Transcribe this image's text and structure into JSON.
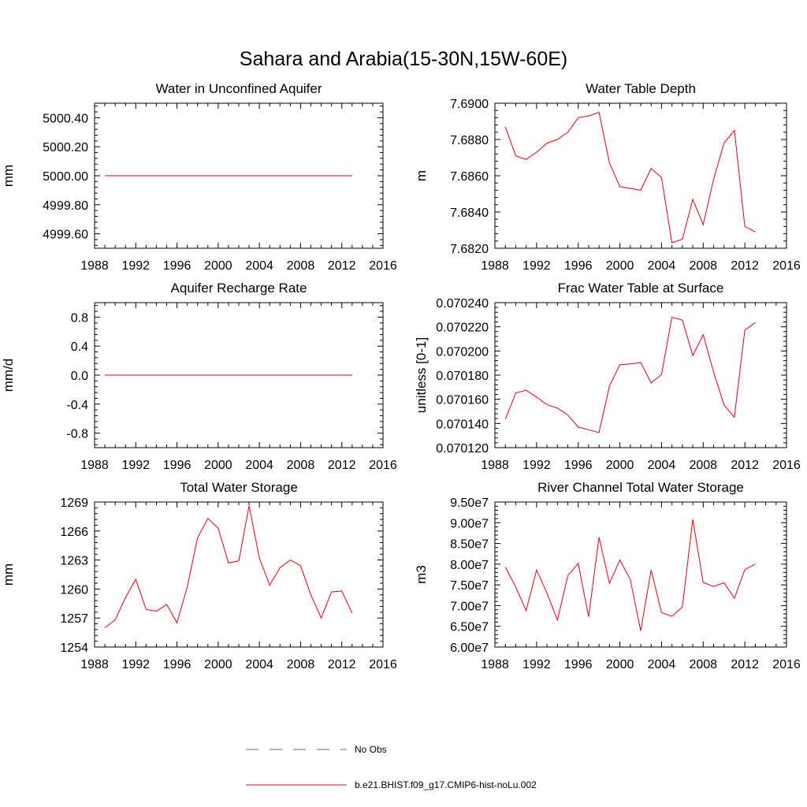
{
  "figure": {
    "title": "Sahara and Arabia(15-30N,15W-60E)"
  },
  "legend": {
    "entries": [
      {
        "label": "No Obs",
        "color": "#5a5aa8",
        "style": "dashed"
      },
      {
        "label": "b.e21.BHIST.f09_g17.CMIP6-hist-noLu.002",
        "color": "#e8000b",
        "style": "solid"
      }
    ]
  },
  "chart_data": [
    {
      "type": "line",
      "title": "Water in Unconfined Aquifer",
      "ylabel": "mm",
      "xlim": [
        1988,
        2016
      ],
      "xticks": [
        1988,
        1992,
        1996,
        2000,
        2004,
        2008,
        2012,
        2016
      ],
      "xtick_labels": [
        "1988",
        "1992",
        "1996",
        "2000",
        "2004",
        "2008",
        "2012",
        "2016"
      ],
      "ylim": [
        4999.5,
        5000.5
      ],
      "yticks": [
        4999.6,
        4999.8,
        5000.0,
        5000.2,
        5000.4
      ],
      "ytick_labels": [
        "4999.60",
        "4999.80",
        "5000.00",
        "5000.20",
        "5000.40"
      ],
      "series": [
        {
          "color": "#e8000b",
          "x": [
            1989,
            1990,
            1991,
            1992,
            1993,
            1994,
            1995,
            1996,
            1997,
            1998,
            1999,
            2000,
            2001,
            2002,
            2003,
            2004,
            2005,
            2006,
            2007,
            2008,
            2009,
            2010,
            2011,
            2012,
            2013
          ],
          "y": [
            5000,
            5000,
            5000,
            5000,
            5000,
            5000,
            5000,
            5000,
            5000,
            5000,
            5000,
            5000,
            5000,
            5000,
            5000,
            5000,
            5000,
            5000,
            5000,
            5000,
            5000,
            5000,
            5000,
            5000,
            5000
          ]
        }
      ]
    },
    {
      "type": "line",
      "title": "Water Table Depth",
      "ylabel": "m",
      "xlim": [
        1988,
        2016
      ],
      "xticks": [
        1988,
        1992,
        1996,
        2000,
        2004,
        2008,
        2012,
        2016
      ],
      "xtick_labels": [
        "1988",
        "1992",
        "1996",
        "2000",
        "2004",
        "2008",
        "2012",
        "2016"
      ],
      "ylim": [
        7.682,
        7.69
      ],
      "yticks": [
        7.682,
        7.684,
        7.686,
        7.688,
        7.69
      ],
      "ytick_labels": [
        "7.6820",
        "7.6840",
        "7.6860",
        "7.6880",
        "7.6900"
      ],
      "series": [
        {
          "color": "#e8000b",
          "x": [
            1989,
            1990,
            1991,
            1992,
            1993,
            1994,
            1995,
            1996,
            1997,
            1998,
            1999,
            2000,
            2001,
            2002,
            2003,
            2004,
            2005,
            2006,
            2007,
            2008,
            2009,
            2010,
            2011,
            2012,
            2013
          ],
          "y": [
            7.6887,
            7.6871,
            7.6869,
            7.6873,
            7.6878,
            7.688,
            7.6884,
            7.6892,
            7.6893,
            7.6895,
            7.6867,
            7.6854,
            7.6853,
            7.6852,
            7.6864,
            7.6859,
            7.6823,
            7.6825,
            7.6847,
            7.6833,
            7.6858,
            7.6878,
            7.6885,
            7.6832,
            7.6829
          ]
        }
      ]
    },
    {
      "type": "line",
      "title": "Aquifer Recharge Rate",
      "ylabel": "mm/d",
      "xlim": [
        1988,
        2016
      ],
      "xticks": [
        1988,
        1992,
        1996,
        2000,
        2004,
        2008,
        2012,
        2016
      ],
      "xtick_labels": [
        "1988",
        "1992",
        "1996",
        "2000",
        "2004",
        "2008",
        "2012",
        "2016"
      ],
      "ylim": [
        -1.0,
        1.0
      ],
      "yticks": [
        -0.8,
        -0.4,
        0.0,
        0.4,
        0.8
      ],
      "ytick_labels": [
        "-0.8",
        "-0.4",
        "0.0",
        "0.4",
        "0.8"
      ],
      "series": [
        {
          "color": "#e8000b",
          "x": [
            1989,
            1990,
            1991,
            1992,
            1993,
            1994,
            1995,
            1996,
            1997,
            1998,
            1999,
            2000,
            2001,
            2002,
            2003,
            2004,
            2005,
            2006,
            2007,
            2008,
            2009,
            2010,
            2011,
            2012,
            2013
          ],
          "y": [
            0,
            0,
            0,
            0,
            0,
            0,
            0,
            0,
            0,
            0,
            0,
            0,
            0,
            0,
            0,
            0,
            0,
            0,
            0,
            0,
            0,
            0,
            0,
            0,
            0
          ]
        }
      ]
    },
    {
      "type": "line",
      "title": "Frac Water Table at Surface",
      "ylabel": "unitless [0-1]",
      "xlim": [
        1988,
        2016
      ],
      "xticks": [
        1988,
        1992,
        1996,
        2000,
        2004,
        2008,
        2012,
        2016
      ],
      "xtick_labels": [
        "1988",
        "1992",
        "1996",
        "2000",
        "2004",
        "2008",
        "2012",
        "2016"
      ],
      "ylim": [
        0.07012,
        0.07024
      ],
      "yticks": [
        0.07012,
        0.07014,
        0.07016,
        0.07018,
        0.0702,
        0.07022,
        0.07024
      ],
      "ytick_labels": [
        "0.070120",
        "0.070140",
        "0.070160",
        "0.070180",
        "0.070200",
        "0.070220",
        "0.070240"
      ],
      "series": [
        {
          "color": "#e8000b",
          "x": [
            1989,
            1990,
            1991,
            1992,
            1993,
            1994,
            1995,
            1996,
            1997,
            1998,
            1999,
            2000,
            2001,
            2002,
            2003,
            2004,
            2005,
            2006,
            2007,
            2008,
            2009,
            2010,
            2011,
            2012,
            2013
          ],
          "y": [
            0.0701435,
            0.0701652,
            0.0701675,
            0.0701618,
            0.0701555,
            0.0701528,
            0.070147,
            0.070137,
            0.0701348,
            0.0701325,
            0.070171,
            0.0701887,
            0.0701892,
            0.0701905,
            0.0701735,
            0.0701805,
            0.0702278,
            0.0702255,
            0.0701962,
            0.0702135,
            0.0701825,
            0.0701553,
            0.0701452,
            0.0702172,
            0.0702235
          ]
        }
      ]
    },
    {
      "type": "line",
      "title": "Total Water Storage",
      "ylabel": "mm",
      "xlim": [
        1988,
        2016
      ],
      "xticks": [
        1988,
        1992,
        1996,
        2000,
        2004,
        2008,
        2012,
        2016
      ],
      "xtick_labels": [
        "1988",
        "1992",
        "1996",
        "2000",
        "2004",
        "2008",
        "2012",
        "2016"
      ],
      "ylim": [
        1254,
        1269
      ],
      "yticks": [
        1254,
        1257,
        1260,
        1263,
        1266,
        1269
      ],
      "ytick_labels": [
        "1254",
        "1257",
        "1260",
        "1263",
        "1266",
        "1269"
      ],
      "series": [
        {
          "color": "#e8000b",
          "x": [
            1989,
            1990,
            1991,
            1992,
            1993,
            1994,
            1995,
            1996,
            1997,
            1998,
            1999,
            2000,
            2001,
            2002,
            2003,
            2004,
            2005,
            2006,
            2007,
            2008,
            2009,
            2010,
            2011,
            2012,
            2013
          ],
          "y": [
            1256.0,
            1256.8,
            1259.1,
            1261.0,
            1257.9,
            1257.7,
            1258.4,
            1256.5,
            1260.2,
            1265.3,
            1267.3,
            1266.3,
            1262.7,
            1262.9,
            1268.6,
            1263.2,
            1260.4,
            1262.2,
            1263.0,
            1262.4,
            1259.4,
            1257.0,
            1259.7,
            1259.8,
            1257.5
          ]
        }
      ]
    },
    {
      "type": "line",
      "title": "River Channel Total Water Storage",
      "ylabel": "m3",
      "xlim": [
        1988,
        2016
      ],
      "xticks": [
        1988,
        1992,
        1996,
        2000,
        2004,
        2008,
        2012,
        2016
      ],
      "xtick_labels": [
        "1988",
        "1992",
        "1996",
        "2000",
        "2004",
        "2008",
        "2012",
        "2016"
      ],
      "ylim": [
        60000000,
        95000000
      ],
      "yticks": [
        60000000,
        65000000,
        70000000,
        75000000,
        80000000,
        85000000,
        90000000,
        95000000
      ],
      "ytick_labels": [
        "6.00e7",
        "6.50e7",
        "7.00e7",
        "7.50e7",
        "8.00e7",
        "8.50e7",
        "9.00e7",
        "9.50e7"
      ],
      "series": [
        {
          "color": "#e8000b",
          "x": [
            1989,
            1990,
            1991,
            1992,
            1993,
            1994,
            1995,
            1996,
            1997,
            1998,
            1999,
            2000,
            2001,
            2002,
            2003,
            2004,
            2005,
            2006,
            2007,
            2008,
            2009,
            2010,
            2011,
            2012,
            2013
          ],
          "y": [
            79300000,
            74500000,
            68800000,
            78600000,
            73000000,
            66500000,
            77200000,
            80200000,
            67300000,
            86500000,
            75400000,
            81000000,
            76300000,
            63900000,
            78600000,
            68300000,
            67400000,
            69700000,
            90800000,
            75600000,
            74600000,
            75500000,
            71800000,
            78700000,
            80000000
          ]
        }
      ]
    }
  ]
}
